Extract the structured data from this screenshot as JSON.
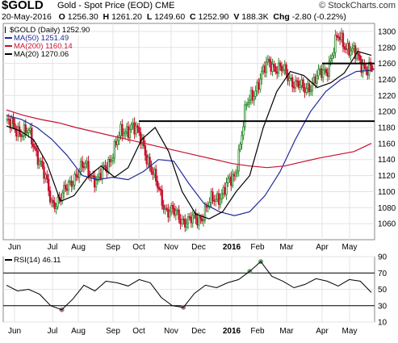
{
  "header": {
    "symbol": "$GOLD",
    "description": "Gold - Spot Price (EOD)",
    "exchange": "CME",
    "watermark": "© StockCharts.com",
    "date": "20-May-2016",
    "o_label": "O",
    "open": "1256.30",
    "h_label": "H",
    "high": "1261.20",
    "l_label": "L",
    "low": "1249.60",
    "c_label": "C",
    "close": "1252.90",
    "v_label": "V",
    "volume": "188.3K",
    "chg_label": "Chg",
    "change": "-2.80 (-0.22%)"
  },
  "legend": {
    "price": "$GOLD (Daily) 1252.90",
    "ma50": "MA(50) 1251.49",
    "ma200": "MA(200) 1160.14",
    "ma20": "MA(20) 1270.06",
    "rsi": "RSI(14) 46.11"
  },
  "colors": {
    "up": "#2b8a2b",
    "down": "#c8102e",
    "ma50": "#1f2a9a",
    "ma200": "#c8102e",
    "ma20": "#000000",
    "grid": "#e3e3e3",
    "hline": "#000000",
    "rsi_over": "#6aa06a",
    "rsi_under": "#a07a7a"
  },
  "chart_data": [
    {
      "type": "candlestick",
      "title": "$GOLD (Daily)",
      "ylim": [
        1040,
        1310
      ],
      "y_ticks": [
        1060,
        1080,
        1100,
        1120,
        1140,
        1160,
        1180,
        1200,
        1220,
        1240,
        1260,
        1280,
        1300
      ],
      "x_labels": [
        "Jun",
        "Jul",
        "Aug",
        "Sep",
        "Oct",
        "Nov",
        "Dec",
        "2016",
        "Feb",
        "Mar",
        "Apr",
        "May"
      ],
      "bold_labels": [
        "2016"
      ],
      "last_price": 1252.9,
      "horizontal_lines": [
        {
          "y": 1188,
          "from": "Oct",
          "to": "end"
        },
        {
          "y": 1260,
          "from": "Apr",
          "to": "end"
        }
      ],
      "price_path": [
        {
          "x": "Jun",
          "y": 1186
        },
        {
          "x": "Jun",
          "y": 1178
        },
        {
          "x": "Jul",
          "y": 1172
        },
        {
          "x": "Jul",
          "y": 1140
        },
        {
          "x": "Aug",
          "y": 1085
        },
        {
          "x": "Aug",
          "y": 1095
        },
        {
          "x": "Aug",
          "y": 1120
        },
        {
          "x": "Sep",
          "y": 1132
        },
        {
          "x": "Sep",
          "y": 1112
        },
        {
          "x": "Oct",
          "y": 1138
        },
        {
          "x": "Oct",
          "y": 1170
        },
        {
          "x": "Oct",
          "y": 1184
        },
        {
          "x": "Nov",
          "y": 1160
        },
        {
          "x": "Nov",
          "y": 1115
        },
        {
          "x": "Nov",
          "y": 1078
        },
        {
          "x": "Dec",
          "y": 1070
        },
        {
          "x": "Dec",
          "y": 1062
        },
        {
          "x": "2016",
          "y": 1068
        },
        {
          "x": "2016",
          "y": 1088
        },
        {
          "x": "2016",
          "y": 1100
        },
        {
          "x": "Feb",
          "y": 1120
        },
        {
          "x": "Feb",
          "y": 1205
        },
        {
          "x": "Feb",
          "y": 1235
        },
        {
          "x": "Mar",
          "y": 1262
        },
        {
          "x": "Mar",
          "y": 1252
        },
        {
          "x": "Mar",
          "y": 1240
        },
        {
          "x": "Apr",
          "y": 1226
        },
        {
          "x": "Apr",
          "y": 1240
        },
        {
          "x": "Apr",
          "y": 1252
        },
        {
          "x": "May",
          "y": 1292
        },
        {
          "x": "May",
          "y": 1280
        },
        {
          "x": "May",
          "y": 1260
        },
        {
          "x": "May",
          "y": 1252.9
        }
      ],
      "series": [
        {
          "name": "MA(50)",
          "values": [
            1195,
            1190,
            1180,
            1165,
            1145,
            1120,
            1115,
            1118,
            1115,
            1125,
            1140,
            1138,
            1110,
            1085,
            1075,
            1070,
            1075,
            1095,
            1125,
            1165,
            1200,
            1225,
            1240,
            1250,
            1251.49
          ]
        },
        {
          "name": "MA(200)",
          "values": [
            1202,
            1195,
            1190,
            1186,
            1180,
            1175,
            1170,
            1165,
            1160,
            1155,
            1150,
            1145,
            1140,
            1135,
            1132,
            1130,
            1132,
            1137,
            1142,
            1146,
            1150,
            1160.14
          ]
        },
        {
          "name": "MA(20)",
          "values": [
            1182,
            1176,
            1165,
            1135,
            1088,
            1095,
            1118,
            1132,
            1118,
            1130,
            1165,
            1180,
            1150,
            1100,
            1072,
            1066,
            1075,
            1100,
            1120,
            1180,
            1225,
            1250,
            1245,
            1230,
            1236,
            1248,
            1275,
            1270.06
          ]
        }
      ]
    },
    {
      "type": "line",
      "title": "RSI(14)",
      "ylim": [
        10,
        90
      ],
      "y_ticks": [
        10,
        30,
        50,
        70,
        90
      ],
      "reference_lines": [
        30,
        70
      ],
      "last_value": 46.11,
      "x_labels": [
        "Jun",
        "Jul",
        "Aug",
        "Sep",
        "Oct",
        "Nov",
        "Dec",
        "2016",
        "Feb",
        "Mar",
        "Apr",
        "May"
      ],
      "series": [
        {
          "name": "RSI(14)",
          "values": [
            55,
            48,
            50,
            44,
            30,
            25,
            38,
            55,
            48,
            60,
            58,
            54,
            62,
            58,
            40,
            30,
            28,
            45,
            55,
            52,
            58,
            62,
            72,
            84,
            66,
            60,
            52,
            56,
            63,
            60,
            54,
            62,
            60,
            46.11
          ]
        }
      ]
    }
  ]
}
